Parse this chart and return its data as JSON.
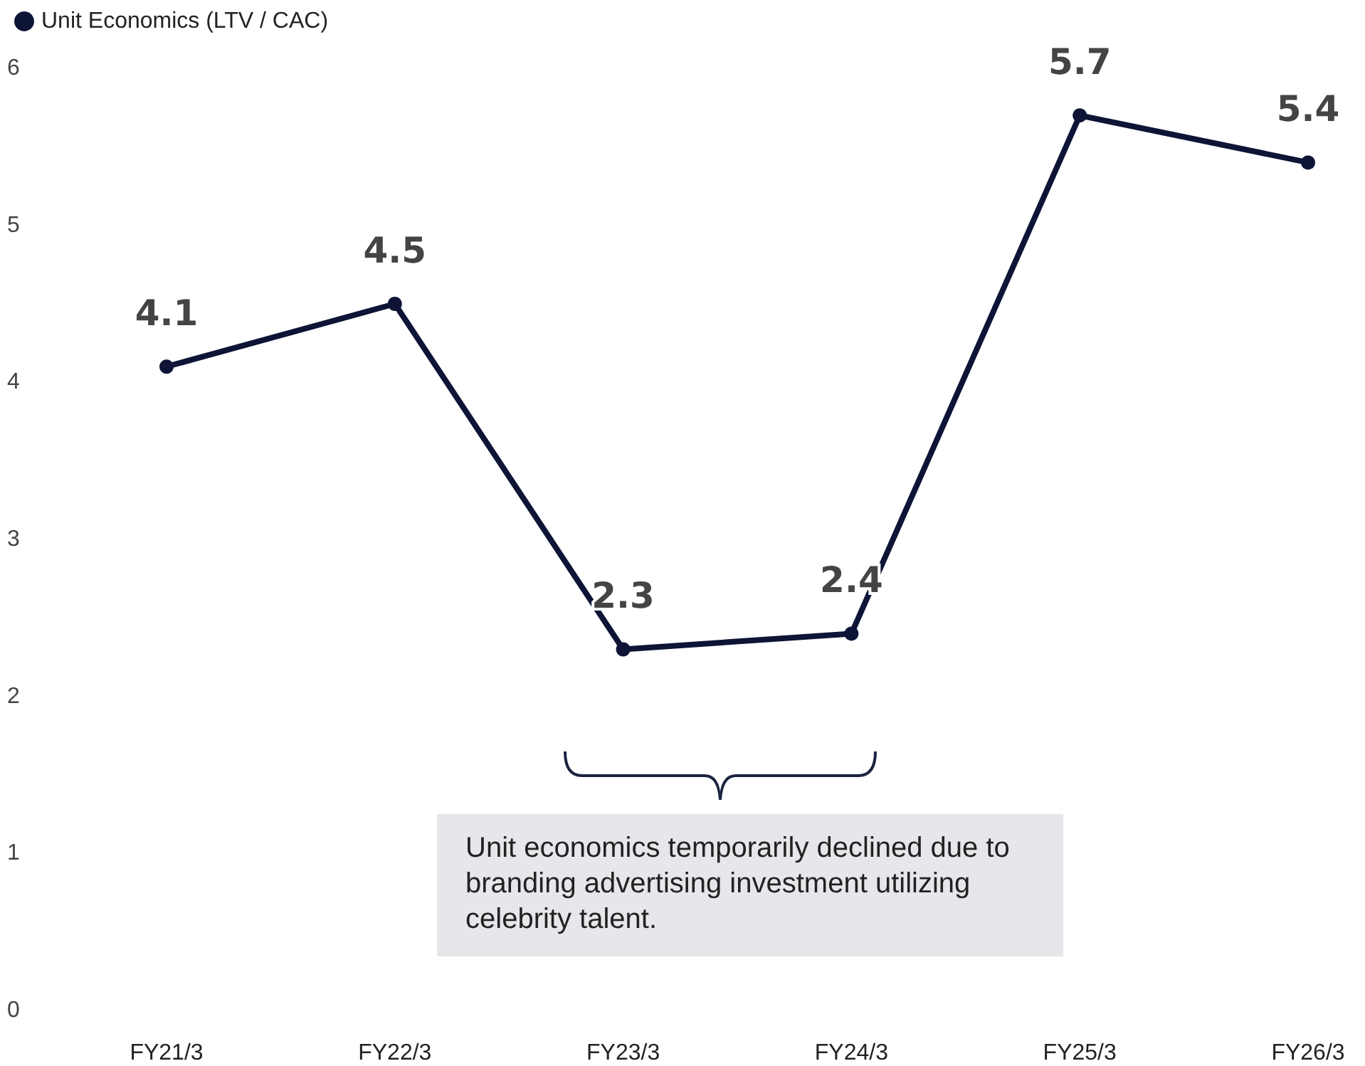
{
  "chart_data": {
    "type": "line",
    "categories": [
      "FY21/3",
      "FY22/3",
      "FY23/3",
      "FY24/3",
      "FY25/3",
      "FY26/3"
    ],
    "series": [
      {
        "name": "Unit Economics (LTV / CAC)",
        "color": "#0d1436",
        "values": [
          4.1,
          4.5,
          2.3,
          2.4,
          5.7,
          5.4
        ]
      }
    ],
    "ylim": [
      0,
      6
    ],
    "yticks": [
      0,
      1,
      2,
      3,
      4,
      5,
      6
    ],
    "data_labels": true,
    "grid": false,
    "legend": "top left",
    "marker": "circle",
    "line_style": "solid",
    "annotations": [
      "Unit economics temporarily declined due to branding advertising investment utilizing celebrity talent."
    ]
  }
}
